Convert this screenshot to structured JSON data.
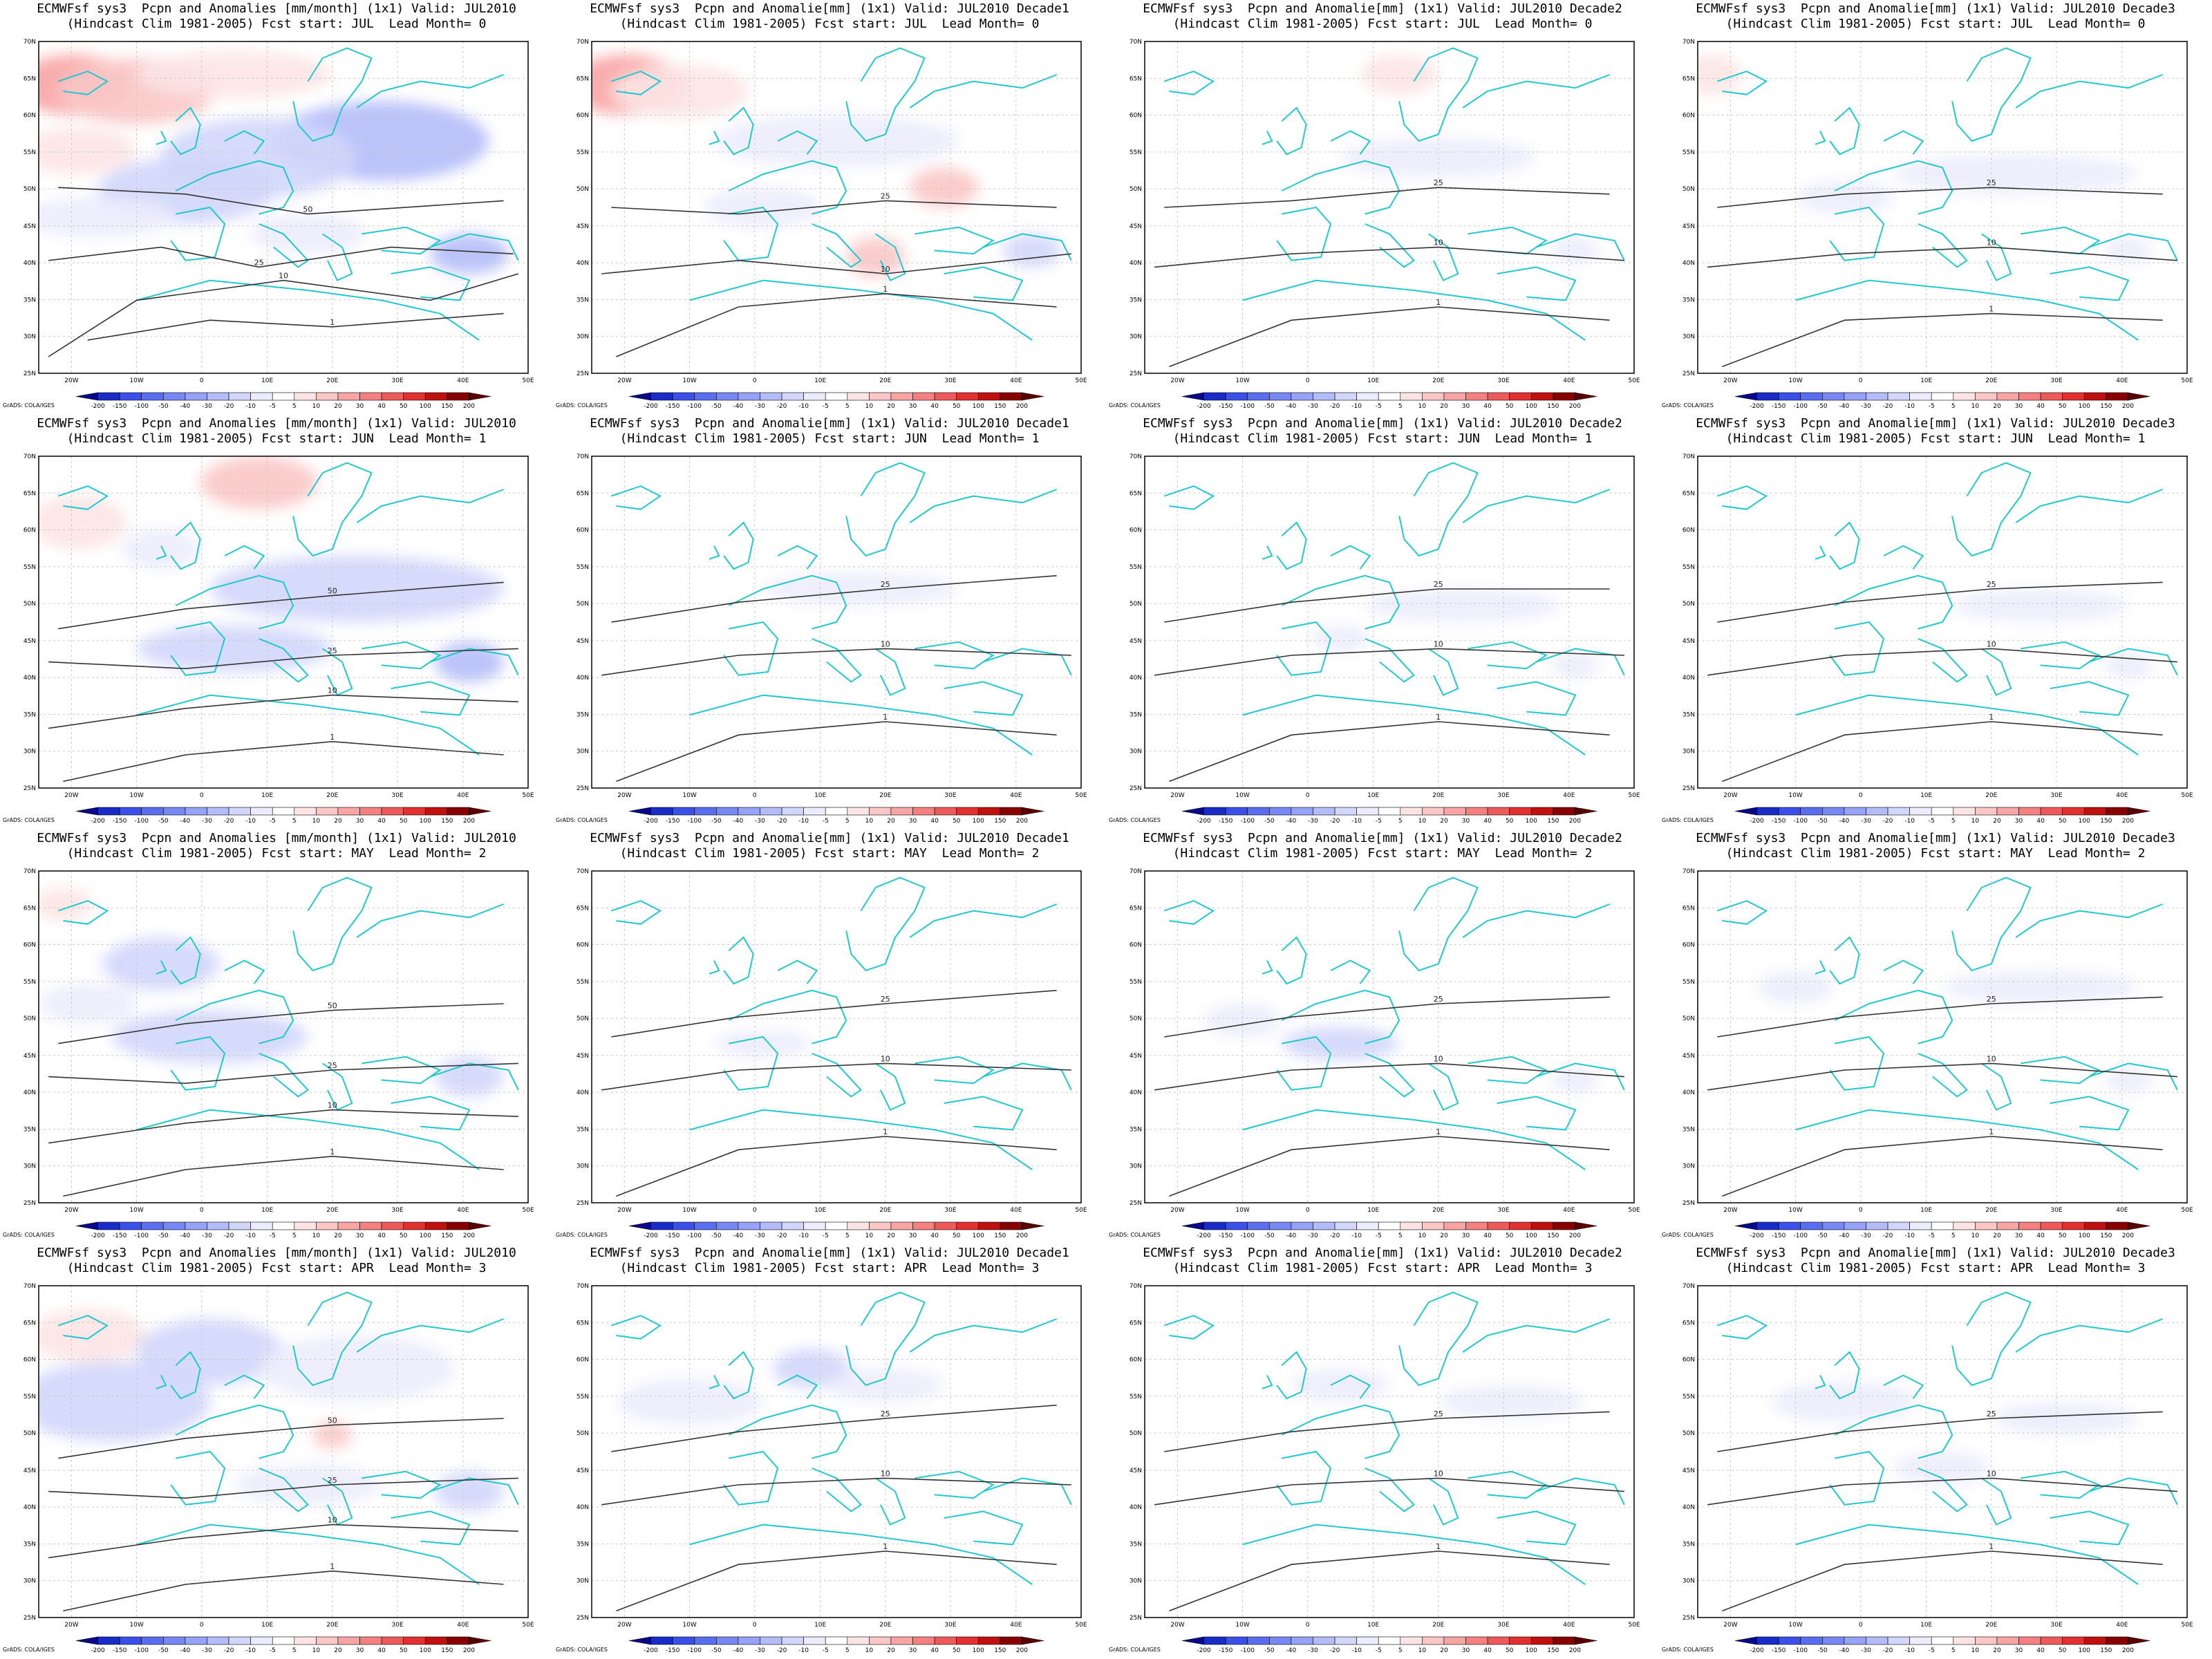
{
  "figure": {
    "title_prefix": "ECMWFsf sys3",
    "hindcast": "(Hindcast Clim 1981-2005)",
    "credit": "GrADS: COLA/IGES"
  },
  "rows": [
    {
      "start": "JUL",
      "lead": "0"
    },
    {
      "start": "JUN",
      "lead": "1"
    },
    {
      "start": "MAY",
      "lead": "2"
    },
    {
      "start": "APR",
      "lead": "3"
    }
  ],
  "columns": [
    {
      "line1": "ECMWFsf sys3  Pcpn and Anomalies [mm/month] (1x1) Valid: JUL2010"
    },
    {
      "line1": "ECMWFsf sys3  Pcpn and Anomalie[mm] (1x1) Valid: JUL2010 Decade1"
    },
    {
      "line1": "ECMWFsf sys3  Pcpn and Anomalie[mm] (1x1) Valid: JUL2010 Decade2"
    },
    {
      "line1": "ECMWFsf sys3  Pcpn and Anomalie[mm] (1x1) Valid: JUL2010 Decade3"
    }
  ],
  "line2_template": "(Hindcast Clim 1981-2005) Fcst start: {start}  Lead Month= {lead}",
  "axes": {
    "lon_ticks": [
      "20W",
      "10W",
      "0",
      "10E",
      "20E",
      "30E",
      "40E",
      "50E"
    ],
    "lat_ticks": [
      "70N",
      "65N",
      "60N",
      "55N",
      "50N",
      "45N",
      "40N",
      "35N",
      "30N",
      "25N"
    ]
  },
  "colorbar": {
    "labels": [
      "-200",
      "-150",
      "-100",
      "-50",
      "-40",
      "-30",
      "-20",
      "-10",
      "-5",
      "5",
      "10",
      "20",
      "30",
      "40",
      "50",
      "100",
      "150",
      "200"
    ],
    "colors": [
      "#08088a",
      "#1a2cc8",
      "#3b50e8",
      "#5a6ef0",
      "#7888f2",
      "#96a2f5",
      "#b4bcf8",
      "#d2d6fb",
      "#ececfd",
      "#ffffff",
      "#fde4e4",
      "#fbc6c6",
      "#f9a4a4",
      "#f48080",
      "#ee5a5a",
      "#e23030",
      "#c01010",
      "#8a0000",
      "#5c0000"
    ]
  },
  "colors": {
    "coast": "#22c8cf",
    "contour": "#333333",
    "grid": "#c8c8c8"
  },
  "panels": [
    {
      "anoms": [
        [
          "r",
          0.07,
          0.13,
          0.12,
          0.09,
          "3"
        ],
        [
          "r",
          0.2,
          0.15,
          0.16,
          0.1,
          "2"
        ],
        [
          "r",
          0.4,
          0.1,
          0.2,
          0.07,
          "1"
        ],
        [
          "r",
          0.08,
          0.33,
          0.12,
          0.07,
          "1"
        ],
        [
          "b",
          0.7,
          0.3,
          0.22,
          0.12,
          "3"
        ],
        [
          "b",
          0.45,
          0.35,
          0.2,
          0.12,
          "2"
        ],
        [
          "b",
          0.3,
          0.45,
          0.18,
          0.1,
          "2"
        ],
        [
          "b",
          0.12,
          0.53,
          0.16,
          0.06,
          "1"
        ],
        [
          "b",
          0.88,
          0.64,
          0.08,
          0.06,
          "3"
        ],
        [
          "b",
          0.55,
          0.58,
          0.12,
          0.06,
          "1"
        ]
      ],
      "contours": [
        [
          "0.04,0.44 0.3,0.46 0.55,0.52 0.95,0.48",
          "50"
        ],
        [
          "0.02,0.66 0.25,0.62 0.45,0.68 0.72,0.62 0.97,0.64",
          "25"
        ],
        [
          "0.02,0.95 0.2,0.78 0.5,0.72 0.8,0.78 0.98,0.7",
          "10"
        ],
        [
          "0.1,0.9 0.35,0.84 0.6,0.86 0.95,0.82",
          "1"
        ]
      ]
    },
    {
      "anoms": [
        [
          "r",
          0.07,
          0.13,
          0.12,
          0.09,
          "3"
        ],
        [
          "r",
          0.18,
          0.15,
          0.14,
          0.08,
          "1"
        ],
        [
          "b",
          0.5,
          0.3,
          0.25,
          0.08,
          "1"
        ],
        [
          "b",
          0.35,
          0.5,
          0.12,
          0.06,
          "1"
        ],
        [
          "r",
          0.72,
          0.44,
          0.07,
          0.06,
          "2"
        ],
        [
          "r",
          0.58,
          0.65,
          0.06,
          0.06,
          "2"
        ],
        [
          "b",
          0.9,
          0.63,
          0.06,
          0.05,
          "2"
        ]
      ],
      "contours": [
        [
          "0.04,0.5 0.3,0.52 0.6,0.48 0.95,0.5",
          "25"
        ],
        [
          "0.02,0.7 0.3,0.66 0.6,0.7 0.98,0.64",
          "10"
        ],
        [
          "0.05,0.95 0.3,0.8 0.6,0.76 0.95,0.8",
          "1"
        ]
      ]
    },
    {
      "anoms": [
        [
          "r",
          0.52,
          0.1,
          0.08,
          0.06,
          "1"
        ],
        [
          "b",
          0.6,
          0.35,
          0.2,
          0.06,
          "1"
        ],
        [
          "b",
          0.88,
          0.63,
          0.05,
          0.04,
          "1"
        ]
      ],
      "contours": [
        [
          "0.04,0.5 0.3,0.48 0.6,0.44 0.95,0.46",
          "25"
        ],
        [
          "0.02,0.68 0.3,0.64 0.6,0.62 0.98,0.66",
          "10"
        ],
        [
          "0.05,0.98 0.3,0.84 0.6,0.8 0.95,0.84",
          "1"
        ]
      ]
    },
    {
      "anoms": [
        [
          "r",
          0.03,
          0.1,
          0.06,
          0.06,
          "1"
        ],
        [
          "b",
          0.65,
          0.4,
          0.25,
          0.06,
          "1"
        ],
        [
          "b",
          0.3,
          0.47,
          0.1,
          0.05,
          "1"
        ],
        [
          "b",
          0.88,
          0.63,
          0.05,
          0.04,
          "1"
        ]
      ],
      "contours": [
        [
          "0.04,0.5 0.3,0.46 0.6,0.44 0.95,0.46",
          "25"
        ],
        [
          "0.02,0.68 0.3,0.64 0.6,0.62 0.98,0.66",
          "10"
        ],
        [
          "0.05,0.98 0.3,0.84 0.6,0.82 0.95,0.84",
          "1"
        ]
      ]
    },
    {
      "anoms": [
        [
          "r",
          0.45,
          0.08,
          0.12,
          0.08,
          "2"
        ],
        [
          "r",
          0.08,
          0.2,
          0.1,
          0.08,
          "1"
        ],
        [
          "b",
          0.65,
          0.4,
          0.3,
          0.1,
          "2"
        ],
        [
          "b",
          0.4,
          0.58,
          0.2,
          0.07,
          "2"
        ],
        [
          "b",
          0.88,
          0.62,
          0.07,
          0.06,
          "3"
        ],
        [
          "b",
          0.25,
          0.28,
          0.08,
          0.06,
          "1"
        ]
      ],
      "contours": [
        [
          "0.04,0.52 0.3,0.46 0.6,0.42 0.95,0.38",
          "50"
        ],
        [
          "0.02,0.62 0.3,0.64 0.6,0.6 0.98,0.58",
          "25"
        ],
        [
          "0.02,0.82 0.3,0.76 0.6,0.72 0.98,0.74",
          "10"
        ],
        [
          "0.05,0.98 0.3,0.9 0.6,0.86 0.95,0.9",
          "1"
        ]
      ]
    },
    {
      "anoms": [
        [
          "b",
          0.55,
          0.4,
          0.2,
          0.05,
          "1"
        ]
      ],
      "contours": [
        [
          "0.04,0.5 0.3,0.44 0.6,0.4 0.95,0.36",
          "25"
        ],
        [
          "0.02,0.66 0.3,0.6 0.6,0.58 0.98,0.6",
          "10"
        ],
        [
          "0.05,0.98 0.3,0.84 0.6,0.8 0.95,0.84",
          "1"
        ]
      ]
    },
    {
      "anoms": [
        [
          "b",
          0.65,
          0.45,
          0.2,
          0.05,
          "1"
        ],
        [
          "b",
          0.4,
          0.55,
          0.06,
          0.04,
          "1"
        ],
        [
          "b",
          0.88,
          0.63,
          0.05,
          0.04,
          "1"
        ]
      ],
      "contours": [
        [
          "0.04,0.5 0.3,0.44 0.6,0.4 0.95,0.4",
          "25"
        ],
        [
          "0.02,0.66 0.3,0.6 0.6,0.58 0.98,0.6",
          "10"
        ],
        [
          "0.05,0.98 0.3,0.84 0.6,0.8 0.95,0.84",
          "1"
        ]
      ]
    },
    {
      "anoms": [
        [
          "b",
          0.7,
          0.45,
          0.18,
          0.05,
          "1"
        ],
        [
          "b",
          0.88,
          0.63,
          0.05,
          0.04,
          "1"
        ]
      ],
      "contours": [
        [
          "0.04,0.5 0.3,0.44 0.6,0.4 0.95,0.38",
          "25"
        ],
        [
          "0.02,0.66 0.3,0.6 0.6,0.58 0.98,0.62",
          "10"
        ],
        [
          "0.05,0.98 0.3,0.84 0.6,0.8 0.95,0.84",
          "1"
        ]
      ]
    },
    {
      "anoms": [
        [
          "r",
          0.05,
          0.1,
          0.06,
          0.05,
          "1"
        ],
        [
          "b",
          0.25,
          0.28,
          0.12,
          0.08,
          "2"
        ],
        [
          "b",
          0.35,
          0.5,
          0.2,
          0.08,
          "2"
        ],
        [
          "b",
          0.88,
          0.62,
          0.07,
          0.06,
          "2"
        ],
        [
          "b",
          0.1,
          0.4,
          0.1,
          0.06,
          "1"
        ]
      ],
      "contours": [
        [
          "0.04,0.52 0.3,0.46 0.6,0.42 0.95,0.4",
          "50"
        ],
        [
          "0.02,0.62 0.3,0.64 0.6,0.6 0.98,0.58",
          "25"
        ],
        [
          "0.02,0.82 0.3,0.76 0.6,0.72 0.98,0.74",
          "10"
        ],
        [
          "0.05,0.98 0.3,0.9 0.6,0.86 0.95,0.9",
          "1"
        ]
      ]
    },
    {
      "anoms": [
        [
          "b",
          0.35,
          0.52,
          0.1,
          0.04,
          "1"
        ]
      ],
      "contours": [
        [
          "0.04,0.5 0.3,0.44 0.6,0.4 0.95,0.36",
          "25"
        ],
        [
          "0.02,0.66 0.3,0.6 0.6,0.58 0.98,0.6",
          "10"
        ],
        [
          "0.05,0.98 0.3,0.84 0.6,0.8 0.95,0.84",
          "1"
        ]
      ]
    },
    {
      "anoms": [
        [
          "b",
          0.4,
          0.52,
          0.12,
          0.05,
          "2"
        ],
        [
          "b",
          0.2,
          0.45,
          0.08,
          0.05,
          "1"
        ],
        [
          "b",
          0.88,
          0.63,
          0.05,
          0.04,
          "1"
        ]
      ],
      "contours": [
        [
          "0.04,0.5 0.3,0.44 0.6,0.4 0.95,0.38",
          "25"
        ],
        [
          "0.02,0.66 0.3,0.6 0.6,0.58 0.98,0.62",
          "10"
        ],
        [
          "0.05,0.98 0.3,0.84 0.6,0.8 0.95,0.84",
          "1"
        ]
      ]
    },
    {
      "anoms": [
        [
          "b",
          0.2,
          0.35,
          0.08,
          0.05,
          "1"
        ],
        [
          "b",
          0.88,
          0.63,
          0.05,
          0.04,
          "1"
        ],
        [
          "b",
          0.7,
          0.35,
          0.2,
          0.05,
          "1"
        ]
      ],
      "contours": [
        [
          "0.04,0.5 0.3,0.44 0.6,0.4 0.95,0.38",
          "25"
        ],
        [
          "0.02,0.66 0.3,0.6 0.6,0.58 0.98,0.62",
          "10"
        ],
        [
          "0.05,0.98 0.3,0.84 0.6,0.8 0.95,0.84",
          "1"
        ]
      ]
    },
    {
      "anoms": [
        [
          "r",
          0.1,
          0.15,
          0.12,
          0.08,
          "1"
        ],
        [
          "b",
          0.15,
          0.35,
          0.2,
          0.12,
          "2"
        ],
        [
          "b",
          0.35,
          0.2,
          0.15,
          0.1,
          "2"
        ],
        [
          "b",
          0.65,
          0.25,
          0.2,
          0.1,
          "1"
        ],
        [
          "b",
          0.55,
          0.6,
          0.15,
          0.06,
          "1"
        ],
        [
          "b",
          0.88,
          0.62,
          0.07,
          0.06,
          "2"
        ],
        [
          "r",
          0.6,
          0.45,
          0.04,
          0.04,
          "2"
        ]
      ],
      "contours": [
        [
          "0.04,0.52 0.3,0.46 0.6,0.42 0.95,0.4",
          "50"
        ],
        [
          "0.02,0.62 0.3,0.64 0.6,0.6 0.98,0.58",
          "25"
        ],
        [
          "0.02,0.82 0.3,0.76 0.6,0.72 0.98,0.74",
          "10"
        ],
        [
          "0.05,0.98 0.3,0.9 0.6,0.86 0.95,0.9",
          "1"
        ]
      ]
    },
    {
      "anoms": [
        [
          "b",
          0.2,
          0.35,
          0.15,
          0.07,
          "1"
        ],
        [
          "b",
          0.45,
          0.25,
          0.08,
          0.06,
          "2"
        ],
        [
          "b",
          0.6,
          0.3,
          0.12,
          0.05,
          "1"
        ]
      ],
      "contours": [
        [
          "0.04,0.5 0.3,0.44 0.6,0.4 0.95,0.36",
          "25"
        ],
        [
          "0.02,0.66 0.3,0.6 0.6,0.58 0.98,0.6",
          "10"
        ],
        [
          "0.05,0.98 0.3,0.84 0.6,0.8 0.95,0.84",
          "1"
        ]
      ]
    },
    {
      "anoms": [
        [
          "b",
          0.4,
          0.3,
          0.1,
          0.05,
          "1"
        ],
        [
          "b",
          0.75,
          0.35,
          0.15,
          0.05,
          "1"
        ]
      ],
      "contours": [
        [
          "0.04,0.5 0.3,0.44 0.6,0.4 0.95,0.38",
          "25"
        ],
        [
          "0.02,0.66 0.3,0.6 0.6,0.58 0.98,0.62",
          "10"
        ],
        [
          "0.05,0.98 0.3,0.84 0.6,0.8 0.95,0.84",
          "1"
        ]
      ]
    },
    {
      "anoms": [
        [
          "b",
          0.3,
          0.35,
          0.15,
          0.06,
          "1"
        ],
        [
          "b",
          0.5,
          0.55,
          0.1,
          0.05,
          "1"
        ],
        [
          "b",
          0.75,
          0.4,
          0.15,
          0.05,
          "1"
        ]
      ],
      "contours": [
        [
          "0.04,0.5 0.3,0.44 0.6,0.4 0.95,0.38",
          "25"
        ],
        [
          "0.02,0.66 0.3,0.6 0.6,0.58 0.98,0.62",
          "10"
        ],
        [
          "0.05,0.98 0.3,0.84 0.6,0.8 0.95,0.84",
          "1"
        ]
      ]
    }
  ]
}
